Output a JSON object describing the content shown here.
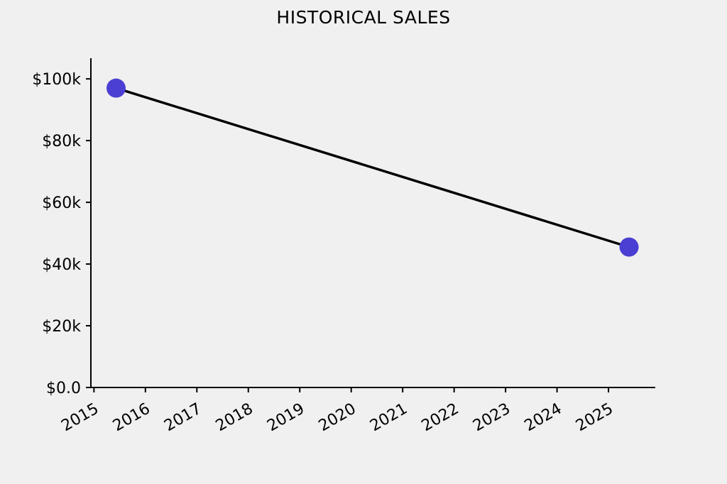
{
  "figure": {
    "background_color": "#f0f0f0"
  },
  "chart_data": {
    "type": "line",
    "title": "HISTORICAL SALES",
    "grid": false,
    "legend_position": "none",
    "background": "#f0f0f0",
    "text_color": "#000000",
    "axis_color": "#000000",
    "series": [
      {
        "points": [
          {
            "x": 2015.43,
            "y": 97000
          },
          {
            "x": 2025.4,
            "y": 45500
          }
        ],
        "line_color": "#000000",
        "line_width": 3.5,
        "marker": "circle",
        "marker_color": "#4b3fd3",
        "marker_radius": 13.5
      }
    ],
    "x_axis": {
      "label": "",
      "range": [
        2014.94,
        2025.91
      ],
      "tick_values": [
        2015,
        2016,
        2017,
        2018,
        2019,
        2020,
        2021,
        2022,
        2023,
        2024,
        2025
      ],
      "tick_labels": [
        "2015",
        "2016",
        "2017",
        "2018",
        "2019",
        "2020",
        "2021",
        "2022",
        "2023",
        "2024",
        "2025"
      ],
      "tick_label_rotation_deg": 30
    },
    "y_axis": {
      "label": "",
      "range": [
        0,
        106700
      ],
      "tick_values": [
        0,
        20000,
        40000,
        60000,
        80000,
        100000
      ],
      "tick_labels": [
        "$0.0",
        "$20k",
        "$40k",
        "$60k",
        "$80k",
        "$100k"
      ]
    }
  }
}
